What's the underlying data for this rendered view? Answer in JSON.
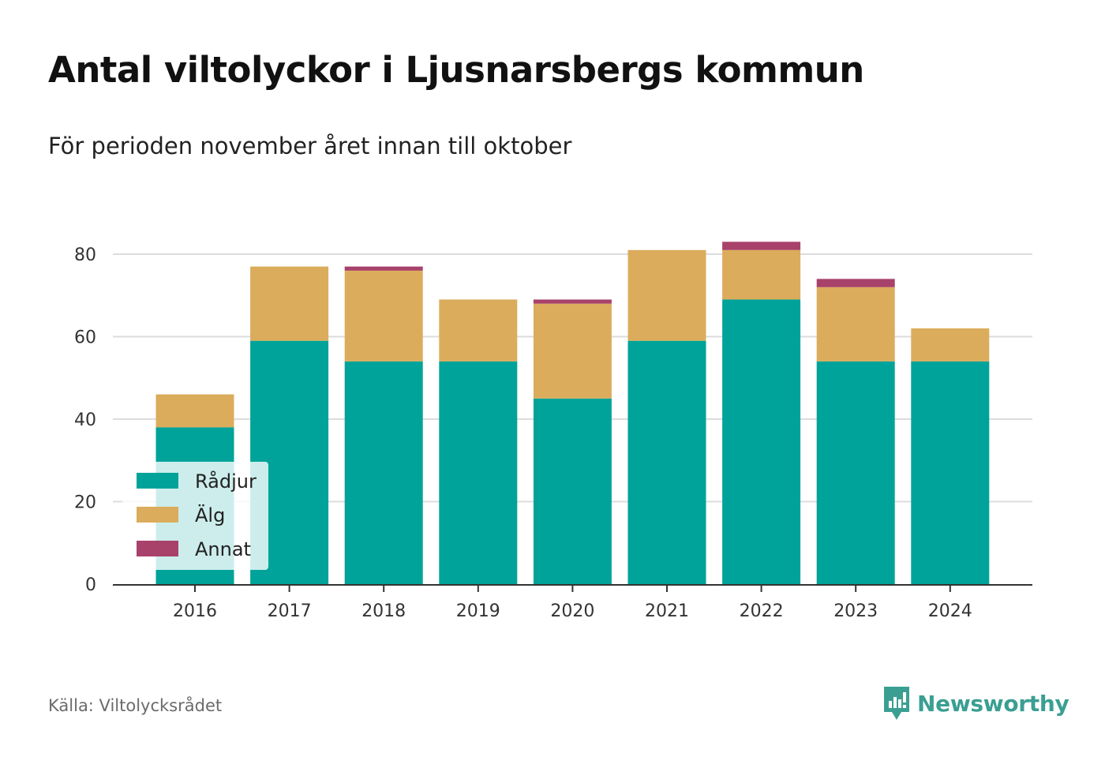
{
  "title": "Antal viltolyckor i Ljusnarsbergs kommun",
  "subtitle": "För perioden november året innan till oktober",
  "source": "Källa: Viltolycksrådet",
  "brand": {
    "name": "Newsworthy",
    "icon": "newsworthy-logo-icon",
    "color": "#3a9f92"
  },
  "chart_data": {
    "type": "bar",
    "stacked": true,
    "categories": [
      "2016",
      "2017",
      "2018",
      "2019",
      "2020",
      "2021",
      "2022",
      "2023",
      "2024"
    ],
    "series": [
      {
        "name": "Rådjur",
        "color": "#00a39a",
        "values": [
          38,
          59,
          54,
          54,
          45,
          59,
          69,
          54,
          54
        ]
      },
      {
        "name": "Älg",
        "color": "#dbac5b",
        "values": [
          8,
          18,
          22,
          15,
          23,
          22,
          12,
          18,
          8
        ]
      },
      {
        "name": "Annat",
        "color": "#a8426a",
        "values": [
          0,
          0,
          1,
          0,
          1,
          0,
          2,
          2,
          0
        ]
      }
    ],
    "ylim": [
      0,
      90
    ],
    "yticks": [
      0,
      20,
      40,
      60,
      80
    ],
    "grid": true,
    "legend_position": "bottom-left",
    "xlabel": "",
    "ylabel": ""
  }
}
